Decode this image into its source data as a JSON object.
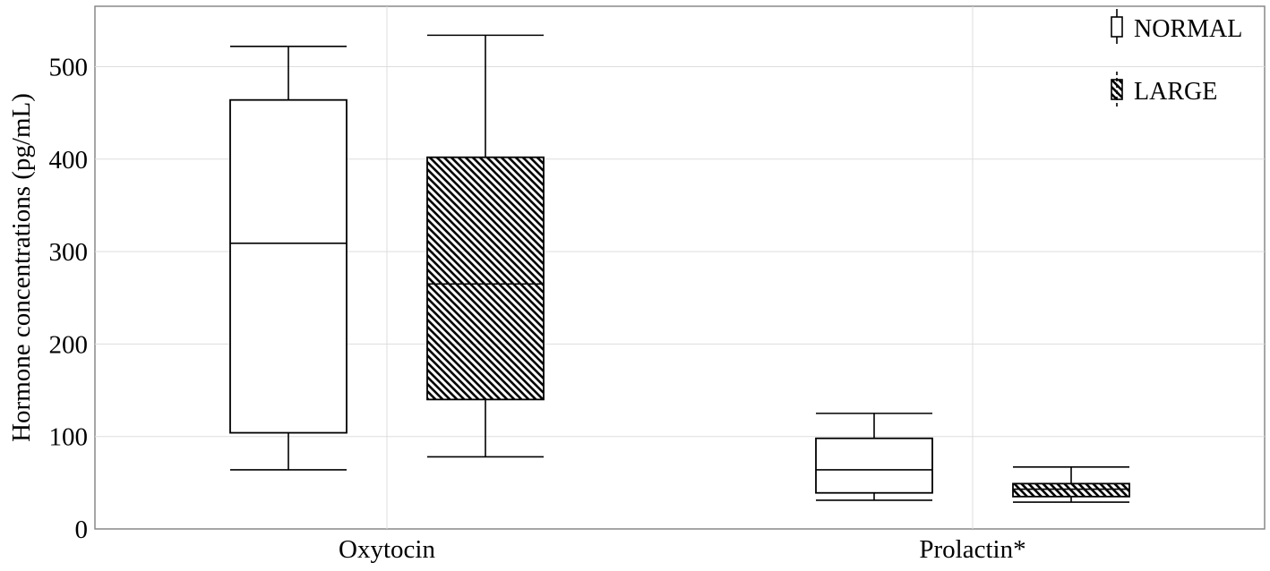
{
  "chart_data": {
    "type": "box",
    "title": "",
    "xlabel": "",
    "ylabel": "Hormone concentrations (pg/mL)",
    "ylim": [
      0,
      565
    ],
    "yticks": [
      "0",
      "100",
      "200",
      "300",
      "400",
      "500"
    ],
    "grid": true,
    "legend_position": "top-right",
    "categories": [
      "Oxytocin",
      "Prolactin*"
    ],
    "series": [
      {
        "name": "NORMAL",
        "pattern": "none",
        "boxes": [
          {
            "min": 64,
            "q1": 104,
            "median": 309,
            "q3": 464,
            "max": 522
          },
          {
            "min": 31,
            "q1": 39,
            "median": 64,
            "q3": 98,
            "max": 125
          }
        ]
      },
      {
        "name": "LARGE",
        "pattern": "diagonal-hatch",
        "boxes": [
          {
            "min": 78,
            "q1": 140,
            "median": 265,
            "q3": 402,
            "max": 534
          },
          {
            "min": 29,
            "q1": 35,
            "median": 43,
            "q3": 49,
            "max": 67
          }
        ]
      }
    ],
    "colors": {
      "background": "#ffffff",
      "frame": "#888888",
      "grid": "#dddddd",
      "stroke": "#000000"
    }
  }
}
